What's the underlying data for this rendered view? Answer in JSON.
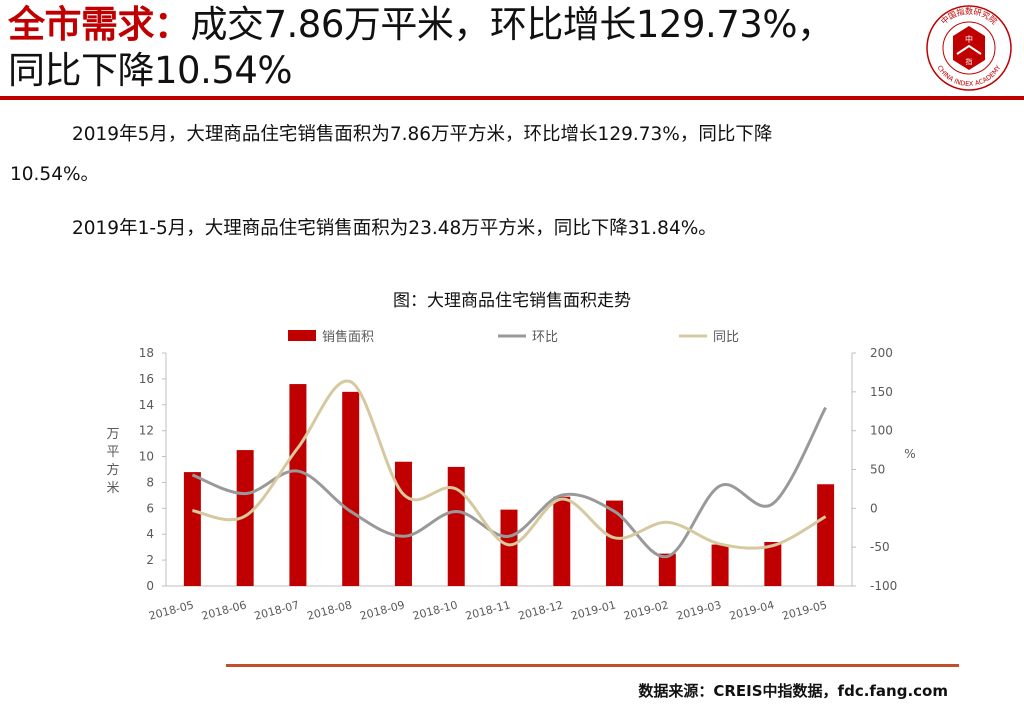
{
  "header": {
    "title_highlight": "全市需求：",
    "title_line1": "成交7.86万平米，环比增长129.73%，",
    "title_line2": "同比下降10.54%"
  },
  "logo": {
    "center_text_1": "中",
    "center_text_2": "指",
    "arc_text_top": "中国指数研究院",
    "arc_text_bottom": "CHINA INDEX ACADEMY"
  },
  "body": {
    "para1_line1": "2019年5月，大理商品住宅销售面积为7.86万平方米，环比增长129.73%，同比下降",
    "para1_line2": "10.54%。",
    "para2": "2019年1-5月，大理商品住宅销售面积为23.48万平方米，同比下降31.84%。"
  },
  "chart_caption": "图：大理商品住宅销售面积走势",
  "chart_data": {
    "type": "bar",
    "categories": [
      "2018-05",
      "2018-06",
      "2018-07",
      "2018-08",
      "2018-09",
      "2018-10",
      "2018-11",
      "2018-12",
      "2019-01",
      "2019-02",
      "2019-03",
      "2019-04",
      "2019-05"
    ],
    "series": [
      {
        "name": "销售面积",
        "type": "bar",
        "axis": "left",
        "color": "#c00000",
        "values": [
          8.8,
          10.5,
          15.6,
          15.0,
          9.6,
          9.2,
          5.9,
          6.9,
          6.6,
          2.5,
          3.2,
          3.4,
          7.86
        ]
      },
      {
        "name": "环比",
        "type": "line",
        "axis": "right",
        "color": "#999999",
        "values": [
          43,
          19,
          48,
          -4,
          -36,
          -4,
          -36,
          17,
          -4,
          -62,
          29,
          6,
          129.73
        ]
      },
      {
        "name": "同比",
        "type": "line",
        "axis": "right",
        "color": "#d6c9a0",
        "values": [
          -3,
          -10,
          78,
          163,
          18,
          25,
          -47,
          12,
          -38,
          -18,
          -46,
          -48,
          -10.54
        ]
      }
    ],
    "ylabel_left": "万平方米",
    "ylabel_right": "%",
    "ylim_left": [
      0,
      18
    ],
    "yticks_left": [
      "0",
      "2",
      "4",
      "6",
      "8",
      "10",
      "12",
      "14",
      "16",
      "18"
    ],
    "ylim_right": [
      -100,
      200
    ],
    "yticks_right": [
      "-100",
      "-50",
      "0",
      "50",
      "100",
      "150",
      "200"
    ],
    "legend_position": "top",
    "grid": false
  },
  "source": "数据来源：CREIS中指数据，fdc.fang.com",
  "colors": {
    "accent": "#c00000",
    "rule_bottom": "#c0502a"
  }
}
